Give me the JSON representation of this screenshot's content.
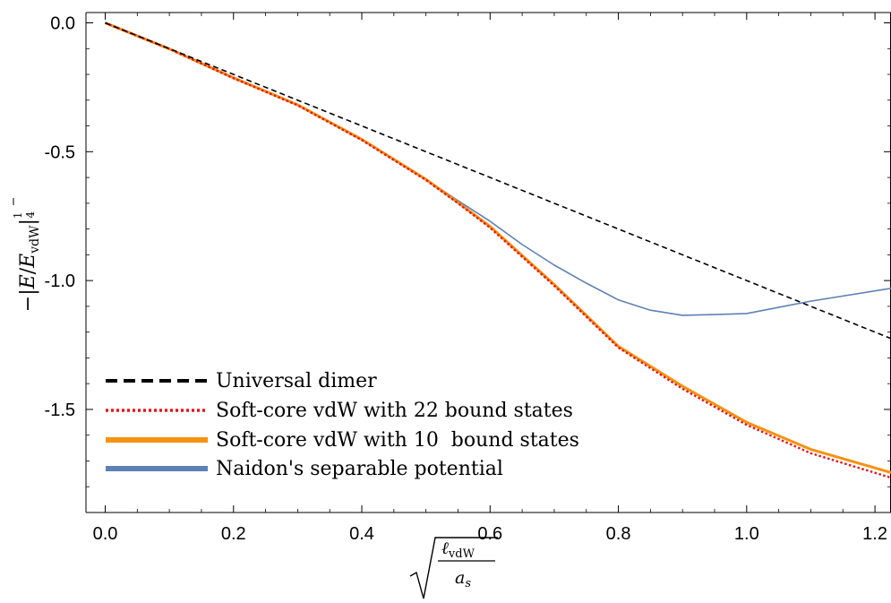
{
  "chart_data": {
    "type": "line",
    "xlabel": "√(ℓvdW / as)",
    "ylabel": "−|E/EvdW|^(1/4)",
    "xlim": [
      -0.03,
      1.225
    ],
    "ylim": [
      -1.9,
      0.04
    ],
    "x_ticks": [
      0.0,
      0.2,
      0.4,
      0.6,
      0.8,
      1.0,
      1.2
    ],
    "x_tick_labels": [
      "0.0",
      "0.2",
      "0.4",
      "0.6",
      "0.8",
      "1.0",
      "1.2"
    ],
    "y_ticks": [
      0.0,
      -0.5,
      -1.0,
      -1.5
    ],
    "y_tick_labels": [
      "0.0",
      "-0.5",
      "-1.0",
      "-1.5"
    ],
    "grid": false,
    "legend_position": "bottom-left",
    "series": [
      {
        "name": "Universal dimer",
        "color": "#000000",
        "style": "dashed",
        "x": [
          0.0,
          1.225
        ],
        "y": [
          0.0,
          -1.225
        ]
      },
      {
        "name": "Soft-core vdW with 22 bound states",
        "color": "#e8141c",
        "style": "dotted",
        "x": [
          0.0,
          0.1,
          0.2,
          0.3,
          0.4,
          0.5,
          0.55,
          0.6,
          0.7,
          0.8,
          0.9,
          1.0,
          1.1,
          1.225
        ],
        "y": [
          0.0,
          -0.101,
          -0.215,
          -0.32,
          -0.455,
          -0.61,
          -0.7,
          -0.795,
          -1.02,
          -1.26,
          -1.42,
          -1.56,
          -1.67,
          -1.765
        ]
      },
      {
        "name": "Soft-core vdW with 10  bound states",
        "color": "#f5920f",
        "style": "solid",
        "x": [
          0.0,
          0.1,
          0.2,
          0.3,
          0.4,
          0.5,
          0.55,
          0.6,
          0.7,
          0.8,
          0.9,
          1.0,
          1.1,
          1.225
        ],
        "y": [
          0.0,
          -0.101,
          -0.213,
          -0.318,
          -0.452,
          -0.607,
          -0.697,
          -0.79,
          -1.015,
          -1.255,
          -1.41,
          -1.55,
          -1.655,
          -1.745
        ]
      },
      {
        "name": "Naidon's separable potential",
        "color": "#5e81b5",
        "style": "solid",
        "x": [
          0.0,
          0.1,
          0.2,
          0.3,
          0.4,
          0.5,
          0.55,
          0.6,
          0.65,
          0.7,
          0.75,
          0.8,
          0.85,
          0.9,
          0.95,
          1.0,
          1.1,
          1.225
        ],
        "y": [
          0.0,
          -0.101,
          -0.213,
          -0.318,
          -0.452,
          -0.607,
          -0.69,
          -0.77,
          -0.86,
          -0.94,
          -1.01,
          -1.075,
          -1.115,
          -1.135,
          -1.132,
          -1.128,
          -1.08,
          -1.03
        ]
      }
    ]
  }
}
